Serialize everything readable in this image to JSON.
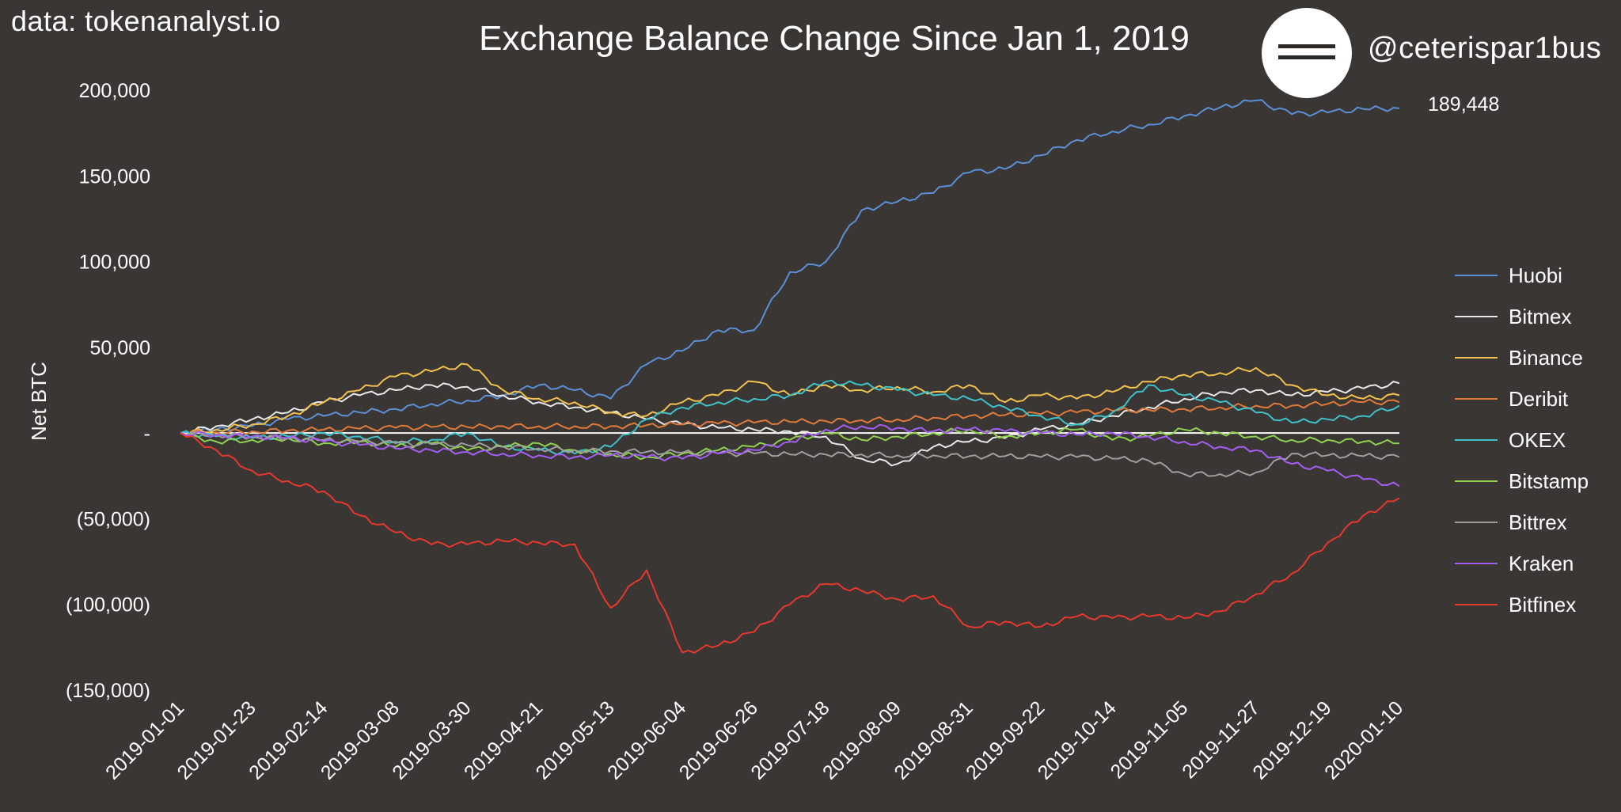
{
  "header": {
    "source": "data: tokenanalyst.io",
    "title": "Exchange Balance Change Since Jan 1, 2019",
    "handle": "@ceterispar1bus"
  },
  "end_label": "189,448",
  "colors": {
    "background": "#3a3634",
    "zero_line": "#ffffff"
  },
  "chart_data": {
    "type": "line",
    "title": "Exchange Balance Change Since Jan 1, 2019",
    "ylabel": "Net BTC",
    "xlabel": "",
    "ylim": [
      -150000,
      200000
    ],
    "y_ticks": [
      200000,
      150000,
      100000,
      50000,
      0,
      -50000,
      -100000,
      -150000
    ],
    "y_tick_labels": [
      "200,000",
      "150,000",
      "100,000",
      "50,000",
      "-",
      "(50,000)",
      "(100,000)",
      "(150,000)"
    ],
    "x_tick_labels": [
      "2019-01-01",
      "2019-01-23",
      "2019-02-14",
      "2019-03-08",
      "2019-03-30",
      "2019-04-21",
      "2019-05-13",
      "2019-06-04",
      "2019-06-26",
      "2019-07-18",
      "2019-08-09",
      "2019-08-31",
      "2019-09-22",
      "2019-10-14",
      "2019-11-05",
      "2019-11-27",
      "2019-12-19",
      "2020-01-10"
    ],
    "x": [
      "2019-01-01",
      "2019-01-12",
      "2019-01-23",
      "2019-02-03",
      "2019-02-14",
      "2019-02-25",
      "2019-03-08",
      "2019-03-19",
      "2019-03-30",
      "2019-04-10",
      "2019-04-21",
      "2019-05-02",
      "2019-05-13",
      "2019-05-24",
      "2019-06-04",
      "2019-06-15",
      "2019-06-26",
      "2019-07-07",
      "2019-07-18",
      "2019-07-29",
      "2019-08-09",
      "2019-08-20",
      "2019-08-31",
      "2019-09-11",
      "2019-09-22",
      "2019-10-03",
      "2019-10-14",
      "2019-10-25",
      "2019-11-05",
      "2019-11-16",
      "2019-11-27",
      "2019-12-08",
      "2019-12-19",
      "2019-12-30",
      "2020-01-10"
    ],
    "legend_position": "right",
    "series": [
      {
        "name": "Huobi",
        "color": "#5b8fd6",
        "values": [
          0,
          2000,
          4000,
          8000,
          10000,
          12000,
          14000,
          17000,
          19000,
          22000,
          28000,
          25000,
          20000,
          40000,
          48000,
          60000,
          60000,
          94000,
          100000,
          130000,
          135000,
          140000,
          152000,
          154000,
          162000,
          171000,
          176000,
          180000,
          185000,
          190000,
          194000,
          186000,
          187000,
          189000,
          189448
        ]
      },
      {
        "name": "Bitmex",
        "color": "#e8e8e8",
        "values": [
          0,
          4000,
          8000,
          12000,
          18000,
          22000,
          25000,
          28000,
          27000,
          22000,
          18000,
          15000,
          12000,
          8000,
          5000,
          3000,
          2000,
          1000,
          -2000,
          -15000,
          -18000,
          -8000,
          -5000,
          -3000,
          2000,
          5000,
          10000,
          15000,
          20000,
          24000,
          25000,
          22000,
          24000,
          26000,
          29000
        ]
      },
      {
        "name": "Binance",
        "color": "#f2c14e",
        "values": [
          0,
          2000,
          5000,
          10000,
          18000,
          25000,
          33000,
          36000,
          40000,
          25000,
          20000,
          18000,
          12000,
          10000,
          18000,
          22000,
          30000,
          22000,
          28000,
          25000,
          27000,
          24000,
          28000,
          18000,
          22000,
          20000,
          24000,
          30000,
          34000,
          35000,
          38000,
          28000,
          22000,
          20000,
          22000
        ]
      },
      {
        "name": "Deribit",
        "color": "#e07a3a",
        "values": [
          0,
          500,
          1000,
          1500,
          2000,
          2500,
          3000,
          3500,
          3500,
          4000,
          4000,
          4000,
          4000,
          4500,
          5000,
          5500,
          6000,
          6500,
          7000,
          7500,
          8000,
          9000,
          10000,
          10500,
          11000,
          12000,
          13000,
          13500,
          14000,
          15000,
          16000,
          16000,
          17000,
          18000,
          18000
        ]
      },
      {
        "name": "OKEX",
        "color": "#3fc1c9",
        "values": [
          0,
          -2000,
          -3000,
          -2000,
          0,
          -2000,
          -5000,
          -4000,
          0,
          -8000,
          -10000,
          -12000,
          -8000,
          8000,
          15000,
          18000,
          20000,
          22000,
          30000,
          28000,
          25000,
          22000,
          20000,
          15000,
          10000,
          5000,
          12000,
          28000,
          22000,
          18000,
          12000,
          6000,
          8000,
          10000,
          16000
        ]
      },
      {
        "name": "Bitstamp",
        "color": "#8fd14f",
        "values": [
          0,
          -5000,
          -4000,
          -3000,
          -6000,
          -5000,
          -8000,
          -6000,
          -10000,
          -8000,
          -6000,
          -10000,
          -12000,
          -14000,
          -12000,
          -10000,
          -8000,
          -4000,
          0,
          -4000,
          -2000,
          0,
          2000,
          -2000,
          0,
          2000,
          -4000,
          -2000,
          2000,
          0,
          -2000,
          -4000,
          -4000,
          -5000,
          -6000
        ]
      },
      {
        "name": "Bittrex",
        "color": "#9e9e9e",
        "values": [
          0,
          -1000,
          -2000,
          -3000,
          -4000,
          -5000,
          -6000,
          -6500,
          -7000,
          -8000,
          -9000,
          -10000,
          -10500,
          -11000,
          -11500,
          -12000,
          -12000,
          -12500,
          -12500,
          -12500,
          -13000,
          -13000,
          -13500,
          -13500,
          -14000,
          -14000,
          -15000,
          -16000,
          -24000,
          -24000,
          -23000,
          -12000,
          -13000,
          -13500,
          -14000
        ]
      },
      {
        "name": "Kraken",
        "color": "#a35ff5",
        "values": [
          0,
          -1000,
          -2000,
          -3000,
          -5000,
          -7000,
          -9000,
          -10000,
          -11000,
          -12000,
          -13000,
          -14000,
          -13000,
          -14000,
          -15000,
          -12000,
          -10000,
          -5000,
          2000,
          4000,
          3000,
          1000,
          2000,
          1000,
          0,
          -1000,
          0,
          -2000,
          -5000,
          -8000,
          -10000,
          -18000,
          -22000,
          -27000,
          -31000
        ]
      },
      {
        "name": "Bitfinex",
        "color": "#e8372c",
        "values": [
          0,
          -10000,
          -22000,
          -28000,
          -34000,
          -48000,
          -58000,
          -65000,
          -65000,
          -63000,
          -64000,
          -65000,
          -102000,
          -80000,
          -128000,
          -124000,
          -116000,
          -100000,
          -88000,
          -92000,
          -97000,
          -95000,
          -113000,
          -110000,
          -113000,
          -107000,
          -108000,
          -107000,
          -108000,
          -104000,
          -94000,
          -82000,
          -64000,
          -48000,
          -38000
        ]
      }
    ]
  }
}
